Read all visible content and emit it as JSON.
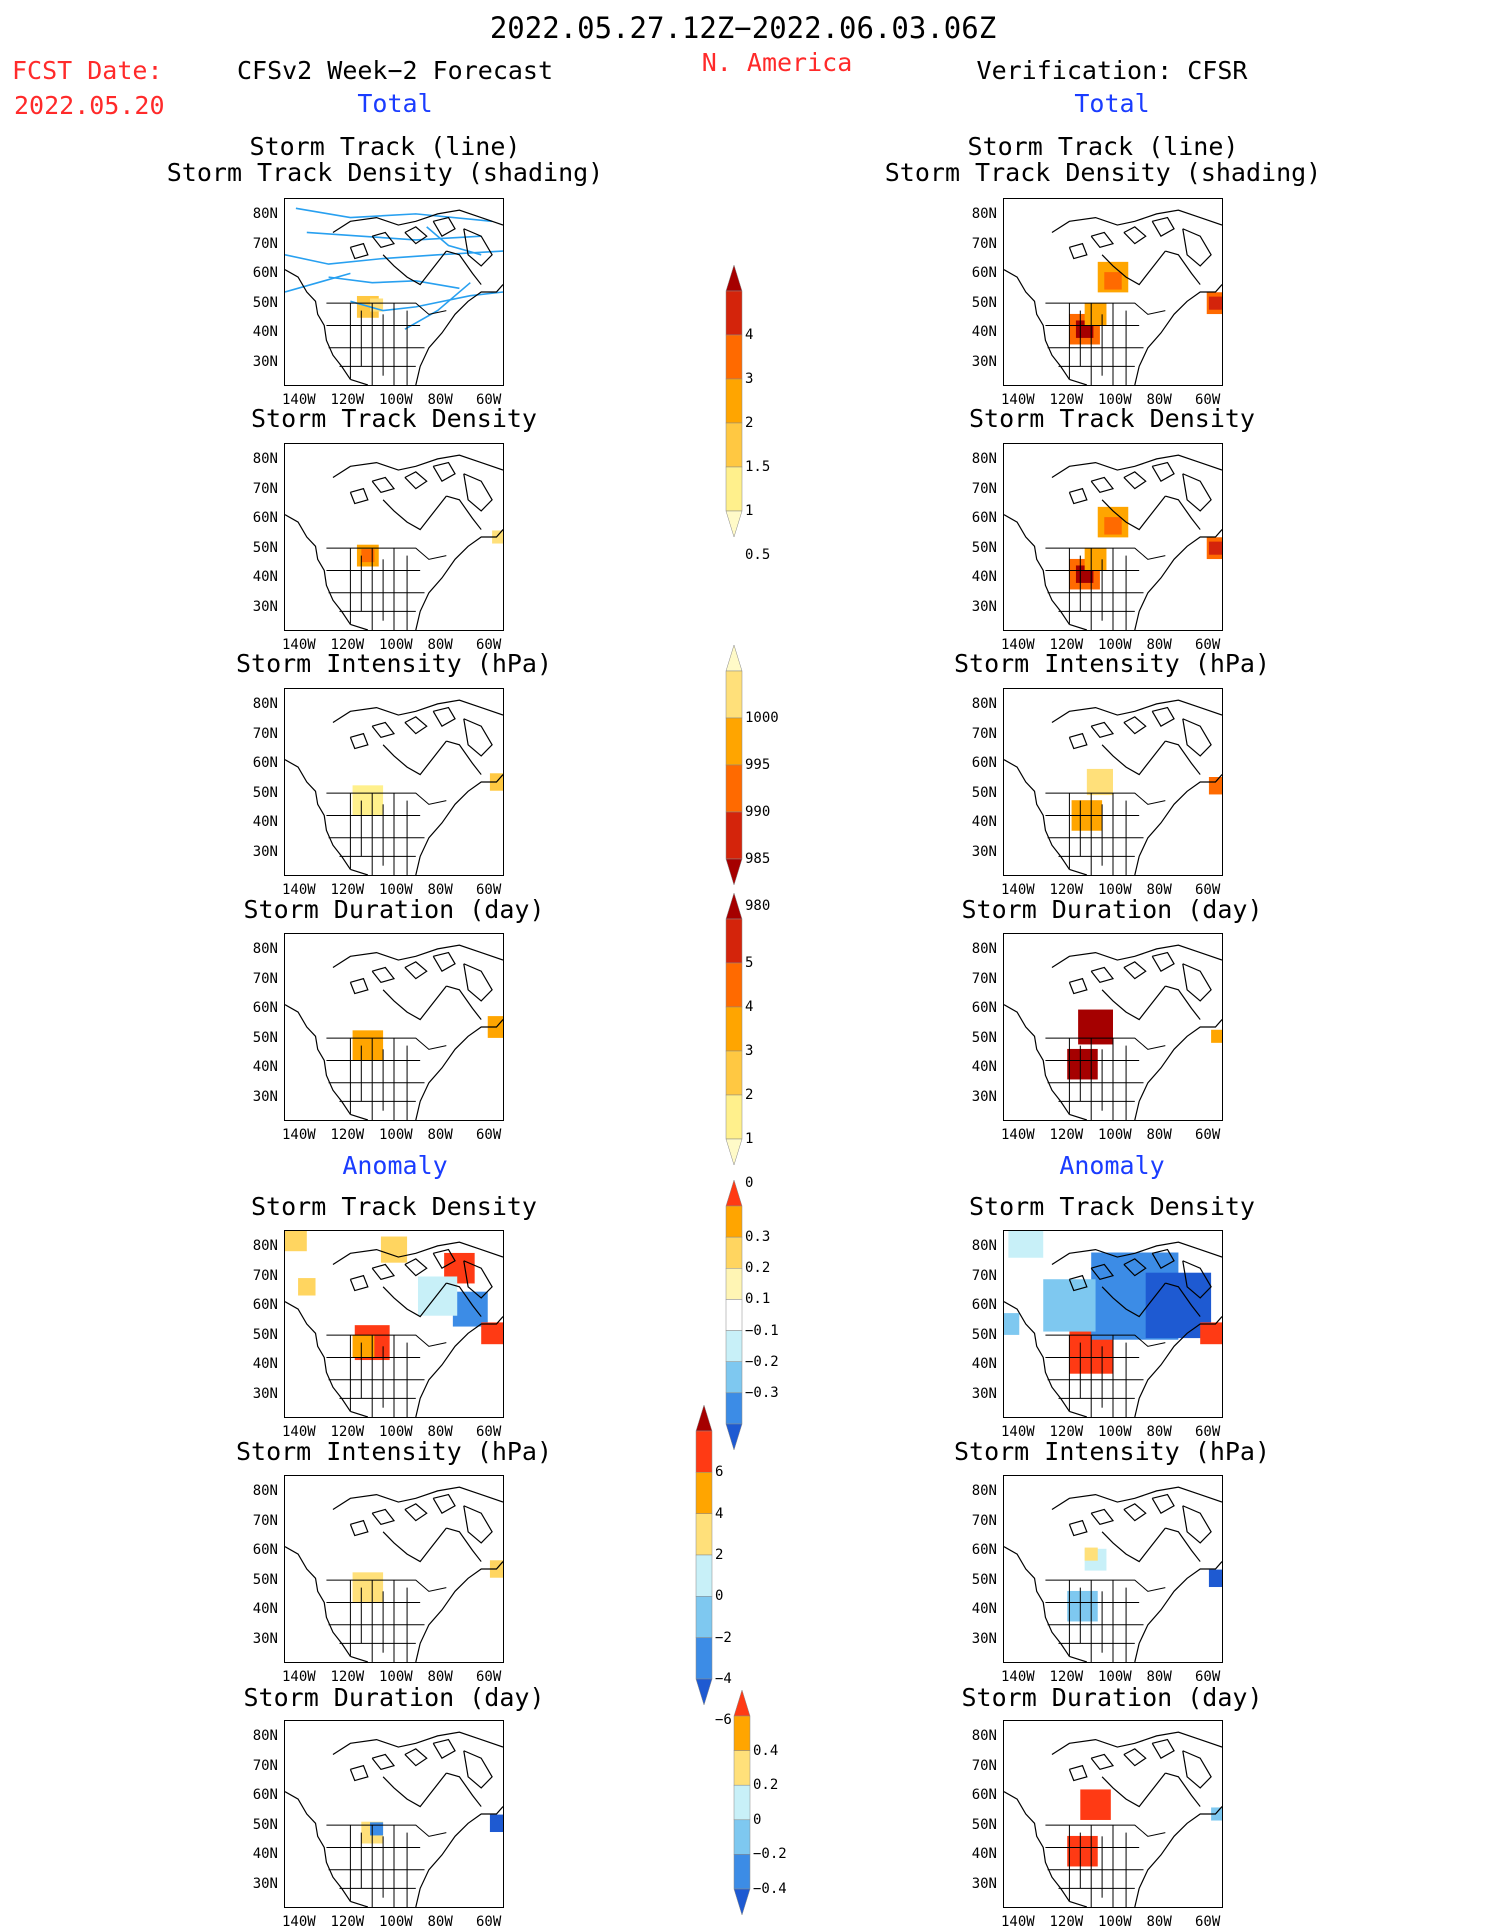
{
  "header": {
    "date_range": "2022.05.27.12Z−2022.06.03.06Z",
    "region": "N. America",
    "fcst_label": "FCST Date:",
    "fcst_date": "2022.05.20",
    "left_title": "CFSv2 Week−2 Forecast",
    "right_title": "Verification: CFSR",
    "total_label": "Total",
    "anomaly_label": "Anomaly"
  },
  "panels": {
    "track_line": "Storm Track (line)",
    "track_density_shading": "Storm Track Density (shading)",
    "track_density": "Storm Track Density",
    "intensity": "Storm Intensity (hPa)",
    "duration": "Storm Duration (day)"
  },
  "axes": {
    "lat_labels": [
      "80N",
      "70N",
      "60N",
      "50N",
      "40N",
      "30N"
    ],
    "lon_labels": [
      "140W",
      "120W",
      "100W",
      "80W",
      "60W"
    ]
  },
  "colorbars": [
    {
      "id": "density_total",
      "labels": [
        "4",
        "3",
        "2",
        "1.5",
        "1",
        "0.5"
      ],
      "colors": [
        "#a50000",
        "#d4240b",
        "#ff6a00",
        "#ffa500",
        "#ffc842",
        "#fff08c",
        "#fffac8"
      ]
    },
    {
      "id": "intensity_total",
      "labels": [
        "1000",
        "995",
        "990",
        "985",
        "980"
      ],
      "colors": [
        "#fffac8",
        "#ffe07a",
        "#ffa500",
        "#ff6a00",
        "#d4240b",
        "#a50000"
      ]
    },
    {
      "id": "duration_total",
      "labels": [
        "5",
        "4",
        "3",
        "2",
        "1",
        "0"
      ],
      "colors": [
        "#a50000",
        "#d4240b",
        "#ff6a00",
        "#ffa500",
        "#ffc842",
        "#fff08c",
        "#fffac8"
      ]
    },
    {
      "id": "density_anom",
      "labels": [
        "0.3",
        "0.2",
        "0.1",
        "−0.1",
        "−0.2",
        "−0.3"
      ],
      "colors": [
        "#ff3a14",
        "#ffa500",
        "#ffd560",
        "#fff5b4",
        "#ffffff",
        "#c8f0f8",
        "#7ec8f0",
        "#3c8ce6",
        "#1e5ad2"
      ]
    },
    {
      "id": "intensity_anom",
      "labels": [
        "6",
        "4",
        "2",
        "0",
        "−2",
        "−4",
        "−6"
      ],
      "colors": [
        "#a50000",
        "#ff3a14",
        "#ffa500",
        "#ffe07a",
        "#c8f0f8",
        "#7ec8f0",
        "#3c8ce6",
        "#1e5ad2"
      ]
    },
    {
      "id": "duration_anom",
      "labels": [
        "0.4",
        "0.2",
        "0",
        "−0.2",
        "−0.4"
      ],
      "colors": [
        "#ff3a14",
        "#ffa500",
        "#ffe07a",
        "#c8f0f8",
        "#7ec8f0",
        "#3c8ce6",
        "#1e5ad2"
      ]
    }
  ]
}
